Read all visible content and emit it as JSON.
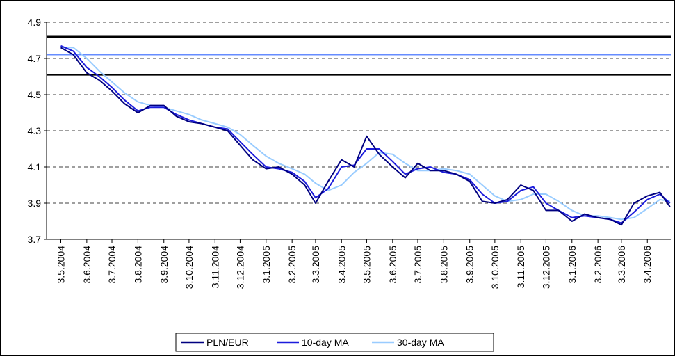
{
  "chart_data": {
    "type": "line",
    "x": [
      "3.5.2004",
      "18.5.2004",
      "3.6.2004",
      "18.6.2004",
      "3.7.2004",
      "18.7.2004",
      "3.8.2004",
      "18.8.2004",
      "3.9.2004",
      "18.9.2004",
      "3.10.2004",
      "18.10.2004",
      "3.11.2004",
      "18.11.2004",
      "3.12.2004",
      "18.12.2004",
      "3.1.2005",
      "18.1.2005",
      "3.2.2005",
      "18.2.2005",
      "3.3.2005",
      "18.3.2005",
      "3.4.2005",
      "18.4.2005",
      "3.5.2005",
      "18.5.2005",
      "3.6.2005",
      "18.6.2005",
      "3.7.2005",
      "18.7.2005",
      "3.8.2005",
      "18.8.2005",
      "3.9.2005",
      "18.9.2005",
      "3.10.2005",
      "18.10.2005",
      "3.11.2005",
      "18.11.2005",
      "3.12.2005",
      "18.12.2005",
      "3.1.2006",
      "18.1.2006",
      "3.2.2006",
      "18.2.2006",
      "3.3.2006",
      "18.3.2006",
      "3.4.2006",
      "18.4.2006",
      "30.4.2006"
    ],
    "series": [
      {
        "name": "PLN/EUR",
        "color": "#000080",
        "width": 2,
        "values": [
          4.76,
          4.72,
          4.62,
          4.58,
          4.52,
          4.45,
          4.4,
          4.44,
          4.44,
          4.38,
          4.35,
          4.34,
          4.32,
          4.3,
          4.22,
          4.14,
          4.09,
          4.1,
          4.06,
          4.0,
          3.9,
          4.02,
          4.14,
          4.1,
          4.27,
          4.17,
          4.1,
          4.04,
          4.12,
          4.08,
          4.08,
          4.06,
          4.02,
          3.91,
          3.9,
          3.92,
          4.0,
          3.97,
          3.86,
          3.86,
          3.8,
          3.84,
          3.82,
          3.81,
          3.78,
          3.9,
          3.94,
          3.96,
          3.88
        ]
      },
      {
        "name": "10-day MA",
        "color": "#1c1cdc",
        "width": 2,
        "values": [
          4.77,
          4.74,
          4.65,
          4.6,
          4.54,
          4.47,
          4.41,
          4.43,
          4.43,
          4.39,
          4.36,
          4.34,
          4.32,
          4.31,
          4.24,
          4.17,
          4.1,
          4.09,
          4.07,
          4.02,
          3.93,
          3.98,
          4.1,
          4.11,
          4.2,
          4.2,
          4.13,
          4.06,
          4.09,
          4.1,
          4.07,
          4.06,
          4.03,
          3.95,
          3.9,
          3.91,
          3.97,
          3.99,
          3.9,
          3.86,
          3.82,
          3.83,
          3.82,
          3.81,
          3.79,
          3.85,
          3.92,
          3.95,
          3.9
        ]
      },
      {
        "name": "30-day MA",
        "color": "#99ccff",
        "width": 2,
        "values": [
          4.76,
          4.76,
          4.7,
          4.63,
          4.57,
          4.51,
          4.46,
          4.44,
          4.43,
          4.41,
          4.39,
          4.36,
          4.34,
          4.32,
          4.28,
          4.22,
          4.16,
          4.12,
          4.09,
          4.06,
          4.01,
          3.97,
          4.0,
          4.07,
          4.12,
          4.18,
          4.17,
          4.12,
          4.08,
          4.08,
          4.09,
          4.08,
          4.06,
          4.0,
          3.94,
          3.91,
          3.92,
          3.95,
          3.95,
          3.91,
          3.86,
          3.83,
          3.83,
          3.82,
          3.81,
          3.82,
          3.87,
          3.92,
          3.91
        ]
      }
    ],
    "reference_lines": [
      {
        "value": 4.82,
        "color": "#000000"
      },
      {
        "value": 4.72,
        "color": "#3366ff"
      },
      {
        "value": 4.61,
        "color": "#000000"
      }
    ],
    "xlim": [
      "16.4.2004",
      "1.5.2006"
    ],
    "xticks": [
      "3.5.2004",
      "3.6.2004",
      "3.7.2004",
      "3.8.2004",
      "3.9.2004",
      "3.10.2004",
      "3.11.2004",
      "3.12.2004",
      "3.1.2005",
      "3.2.2005",
      "3.3.2005",
      "3.4.2005",
      "3.5.2005",
      "3.6.2005",
      "3.7.2005",
      "3.8.2005",
      "3.9.2005",
      "3.10.2005",
      "3.11.2005",
      "3.12.2005",
      "3.1.2006",
      "3.2.2006",
      "3.3.2006",
      "3.4.2006"
    ],
    "ylim": [
      3.7,
      4.9
    ],
    "yticks": [
      3.7,
      3.9,
      4.1,
      4.3,
      4.5,
      4.7,
      4.9
    ],
    "grid": true,
    "legend": "bottom"
  }
}
